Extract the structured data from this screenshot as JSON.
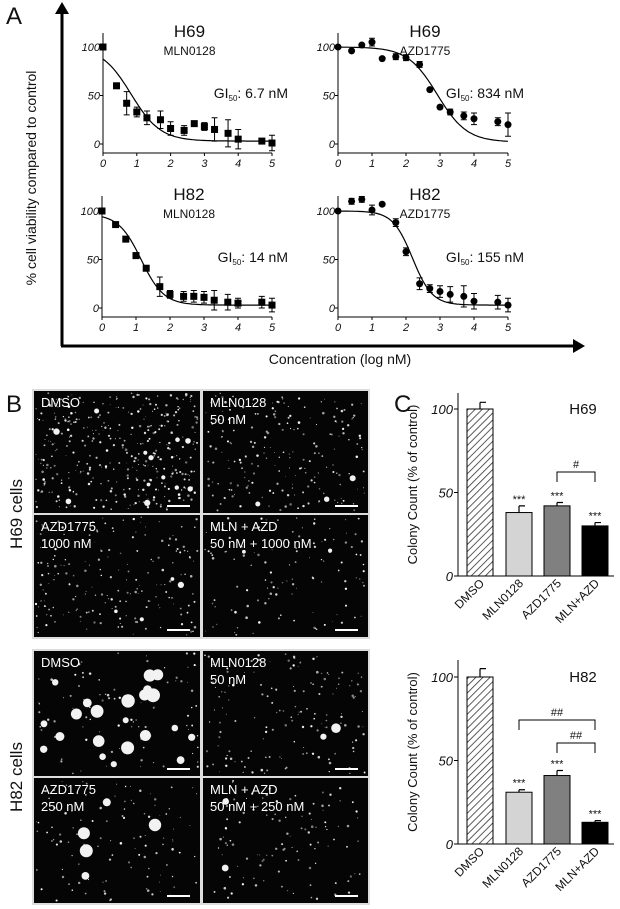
{
  "panel_labels": {
    "a": "A",
    "b": "B",
    "c": "C"
  },
  "panel_a": {
    "ylabel": "% cell viability compared to control",
    "xlabel": "Concentration (log nM)"
  },
  "panel_b": {
    "rows": [
      {
        "label": "H69 cells",
        "tiles": [
          {
            "line1": "DMSO",
            "line2": ""
          },
          {
            "line1": "MLN0128",
            "line2": "50 nM"
          },
          {
            "line1": "AZD1775",
            "line2": "1000 nM"
          },
          {
            "line1": "MLN + AZD",
            "line2": "50 nM + 1000 nM"
          }
        ]
      },
      {
        "label": "H82 cells",
        "tiles": [
          {
            "line1": "DMSO",
            "line2": ""
          },
          {
            "line1": "MLN0128",
            "line2": "50 nM"
          },
          {
            "line1": "AZD1775",
            "line2": "250 nM"
          },
          {
            "line1": "MLN + AZD",
            "line2": "50 nM + 250 nM"
          }
        ]
      }
    ]
  },
  "chart_data": [
    {
      "type": "scatter",
      "panel": "A",
      "title": "H69",
      "subtitle": "MLN0128",
      "marker": "square",
      "gi_prefix": "GI",
      "gi_sub": "50",
      "gi_value": ": 6.7 nM",
      "xlim": [
        0,
        5
      ],
      "ylim": [
        0,
        100
      ],
      "xticks": [
        "0",
        "1",
        "2",
        "3",
        "4",
        "5"
      ],
      "yticks": [
        "0",
        "50",
        "100"
      ],
      "points": [
        [
          0,
          100,
          0
        ],
        [
          0.4,
          60,
          0
        ],
        [
          0.7,
          42,
          12
        ],
        [
          1,
          33,
          5
        ],
        [
          1.3,
          27,
          7
        ],
        [
          1.7,
          25,
          9
        ],
        [
          2,
          16,
          7
        ],
        [
          2.4,
          14,
          5
        ],
        [
          2.7,
          21,
          0
        ],
        [
          3,
          18,
          4
        ],
        [
          3.3,
          15,
          12
        ],
        [
          3.7,
          11,
          14
        ],
        [
          4,
          5,
          10
        ],
        [
          4.7,
          3,
          2
        ],
        [
          5,
          1,
          8
        ]
      ],
      "fit": {
        "top": 100,
        "bottom": 3,
        "logIC50": 0.83,
        "hill": 1.0
      }
    },
    {
      "type": "scatter",
      "panel": "A",
      "title": "H69",
      "subtitle": "AZD1775",
      "marker": "circle",
      "gi_prefix": "GI",
      "gi_sub": "50",
      "gi_value": ": 834 nM",
      "xlim": [
        0,
        5
      ],
      "ylim": [
        0,
        100
      ],
      "xticks": [
        "0",
        "1",
        "2",
        "3",
        "4",
        "5"
      ],
      "yticks": [
        "0",
        "50",
        "100"
      ],
      "points": [
        [
          0,
          100,
          0
        ],
        [
          0.4,
          96,
          0
        ],
        [
          0.7,
          102,
          0
        ],
        [
          1,
          105,
          4
        ],
        [
          1.3,
          88,
          0
        ],
        [
          1.7,
          90,
          3
        ],
        [
          2,
          89,
          3
        ],
        [
          2.4,
          82,
          3
        ],
        [
          2.7,
          56,
          0
        ],
        [
          3,
          38,
          0
        ],
        [
          3.3,
          33,
          3
        ],
        [
          3.7,
          29,
          4
        ],
        [
          4,
          26,
          6
        ],
        [
          4.7,
          23,
          4
        ],
        [
          5,
          20,
          12
        ]
      ],
      "fit": {
        "top": 100,
        "bottom": 2,
        "logIC50": 2.92,
        "hill": 1.0
      }
    },
    {
      "type": "scatter",
      "panel": "A",
      "title": "H82",
      "subtitle": "MLN0128",
      "marker": "square",
      "gi_prefix": "GI",
      "gi_sub": "50",
      "gi_value": ": 14 nM",
      "xlim": [
        0,
        5
      ],
      "ylim": [
        0,
        100
      ],
      "xticks": [
        "0",
        "1",
        "2",
        "3",
        "4",
        "5"
      ],
      "yticks": [
        "0",
        "50",
        "100"
      ],
      "points": [
        [
          0,
          100,
          0
        ],
        [
          0.4,
          86,
          0
        ],
        [
          0.7,
          71,
          0
        ],
        [
          1,
          54,
          3
        ],
        [
          1.3,
          41,
          0
        ],
        [
          1.7,
          22,
          10
        ],
        [
          2,
          14,
          4
        ],
        [
          2.4,
          12,
          5
        ],
        [
          2.7,
          12,
          6
        ],
        [
          3,
          11,
          6
        ],
        [
          3.3,
          8,
          10
        ],
        [
          3.7,
          6,
          8
        ],
        [
          4,
          5,
          5
        ],
        [
          4.7,
          6,
          6
        ],
        [
          5,
          3,
          7
        ]
      ],
      "fit": {
        "top": 97,
        "bottom": 3,
        "logIC50": 1.15,
        "hill": 1.3
      }
    },
    {
      "type": "scatter",
      "panel": "A",
      "title": "H82",
      "subtitle": "AZD1775",
      "marker": "circle",
      "gi_prefix": "GI",
      "gi_sub": "50",
      "gi_value": ": 155 nM",
      "xlim": [
        0,
        5
      ],
      "ylim": [
        0,
        100
      ],
      "xticks": [
        "0",
        "1",
        "2",
        "3",
        "4",
        "5"
      ],
      "yticks": [
        "0",
        "50",
        "100"
      ],
      "points": [
        [
          0,
          100,
          0
        ],
        [
          0.4,
          110,
          3
        ],
        [
          0.7,
          112,
          3
        ],
        [
          1,
          101,
          5
        ],
        [
          1.3,
          107,
          0
        ],
        [
          1.7,
          88,
          4
        ],
        [
          2,
          58,
          4
        ],
        [
          2.4,
          25,
          6
        ],
        [
          2.7,
          20,
          4
        ],
        [
          3,
          17,
          6
        ],
        [
          3.3,
          14,
          8
        ],
        [
          3.7,
          12,
          11
        ],
        [
          4,
          7,
          8
        ],
        [
          4.7,
          6,
          7
        ],
        [
          5,
          3,
          7
        ]
      ],
      "fit": {
        "top": 100,
        "bottom": 3,
        "logIC50": 2.19,
        "hill": 1.5
      }
    },
    {
      "type": "bar",
      "panel": "C",
      "title": "H69",
      "ylabel": "Colony Count (% of control)",
      "ylim": [
        0,
        100
      ],
      "yticks": [
        "0",
        "50",
        "100"
      ],
      "categories": [
        "DMSO",
        "MLN0128",
        "AZD1775",
        "MLN+AZD"
      ],
      "values": [
        100,
        38,
        42,
        30
      ],
      "errors": [
        4,
        4,
        2,
        2
      ],
      "fills": [
        "hatch",
        "#d4d4d4",
        "#808080",
        "#000000"
      ],
      "stars": [
        "",
        "***",
        "***",
        "***"
      ],
      "comparisons": [
        {
          "from": 2,
          "to": 3,
          "label": "#"
        }
      ]
    },
    {
      "type": "bar",
      "panel": "C",
      "title": "H82",
      "ylabel": "Colony Count (% of control)",
      "ylim": [
        0,
        100
      ],
      "yticks": [
        "0",
        "50",
        "100"
      ],
      "categories": [
        "DMSO",
        "MLN0128",
        "AZD1775",
        "MLN+AZD"
      ],
      "values": [
        100,
        31,
        41,
        13
      ],
      "errors": [
        5,
        1.5,
        3,
        1
      ],
      "fills": [
        "hatch",
        "#d4d4d4",
        "#808080",
        "#000000"
      ],
      "stars": [
        "",
        "***",
        "***",
        "***"
      ],
      "comparisons": [
        {
          "from": 1,
          "to": 3,
          "label": "##"
        },
        {
          "from": 2,
          "to": 3,
          "label": "##"
        }
      ]
    }
  ]
}
